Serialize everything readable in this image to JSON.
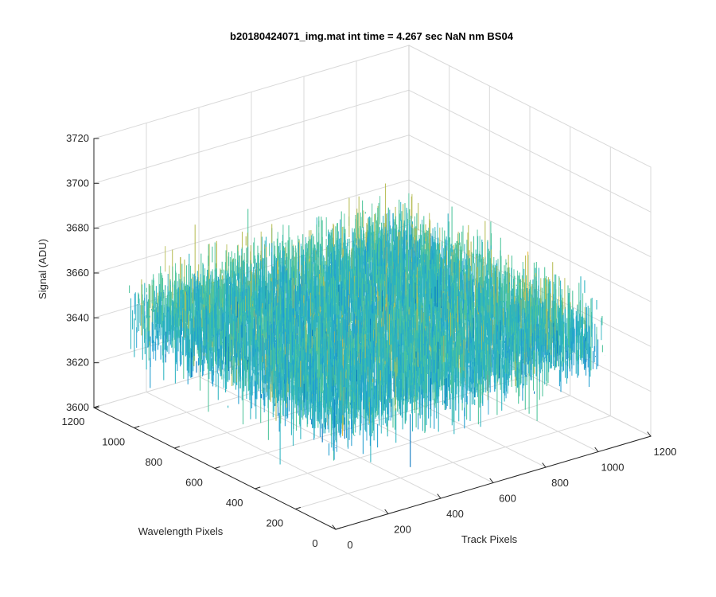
{
  "chart_data": {
    "type": "surface3d",
    "title": "b20180424071_img.mat int time = 4.267 sec  NaN nm BS04",
    "xlabel": "Track Pixels",
    "ylabel": "Wavelength Pixels",
    "zlabel": "Signal (ADU)",
    "xlim": [
      0,
      1200
    ],
    "ylim": [
      0,
      1200
    ],
    "zlim": [
      3600,
      3720
    ],
    "x_ticks": [
      0,
      200,
      400,
      600,
      800,
      1000,
      1200
    ],
    "y_ticks": [
      0,
      200,
      400,
      600,
      800,
      1000,
      1200
    ],
    "z_ticks": [
      3600,
      3620,
      3640,
      3660,
      3680,
      3700,
      3720
    ],
    "grid": true,
    "surface": {
      "x_range": [
        1,
        1024
      ],
      "y_range": [
        1,
        1024
      ],
      "mean_signal": 3650,
      "noise_std": 10,
      "min_signal": 3615,
      "max_signal": 3705
    },
    "colormap": [
      "#0072BD",
      "#1F9CD0",
      "#2BB3C0",
      "#4CC49A",
      "#B7BD55",
      "#E8B736"
    ]
  }
}
